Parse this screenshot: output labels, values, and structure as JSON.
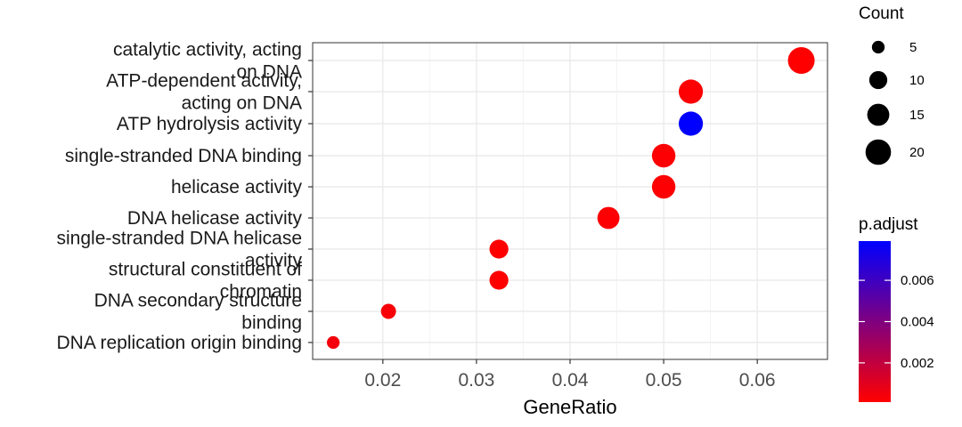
{
  "chart_data": {
    "type": "scatter",
    "title": "",
    "xlabel": "GeneRatio",
    "ylabel": "",
    "xlim": [
      0.0125,
      0.0675
    ],
    "x_ticks": [
      "0.02",
      "0.03",
      "0.04",
      "0.05",
      "0.06"
    ],
    "x_tick_values": [
      0.02,
      0.03,
      0.04,
      0.05,
      0.06
    ],
    "grid": true,
    "categories": [
      [
        "catalytic activity, acting",
        "on DNA"
      ],
      [
        "ATP-dependent activity,",
        "acting on DNA"
      ],
      [
        "ATP hydrolysis activity"
      ],
      [
        "single-stranded DNA binding"
      ],
      [
        "helicase activity"
      ],
      [
        "DNA helicase activity"
      ],
      [
        "single-stranded DNA helicase",
        "activity"
      ],
      [
        "structural constituent of",
        "chromatin"
      ],
      [
        "DNA secondary structure",
        "binding"
      ],
      [
        "DNA replication origin binding"
      ]
    ],
    "points": [
      {
        "x": 0.0647,
        "count": 22,
        "p_adjust": 0.0001
      },
      {
        "x": 0.0529,
        "count": 18,
        "p_adjust": 0.0002
      },
      {
        "x": 0.0529,
        "count": 18,
        "p_adjust": 0.0079
      },
      {
        "x": 0.05,
        "count": 17,
        "p_adjust": 0.0002
      },
      {
        "x": 0.05,
        "count": 17,
        "p_adjust": 0.0002
      },
      {
        "x": 0.0441,
        "count": 15,
        "p_adjust": 0.0002
      },
      {
        "x": 0.0324,
        "count": 11,
        "p_adjust": 0.0001
      },
      {
        "x": 0.0324,
        "count": 11,
        "p_adjust": 0.0001
      },
      {
        "x": 0.0206,
        "count": 7,
        "p_adjust": 0.0003
      },
      {
        "x": 0.0147,
        "count": 5,
        "p_adjust": 0.0004
      }
    ],
    "legend_count": {
      "title": "Count",
      "labels": [
        "5",
        "10",
        "15",
        "20"
      ],
      "values": [
        5,
        10,
        15,
        20
      ]
    },
    "legend_p_adjust": {
      "title": "p.adjust",
      "labels": [
        "0.006",
        "0.004",
        "0.002"
      ],
      "values": [
        0.006,
        0.004,
        0.002
      ],
      "range": [
        0.0001,
        0.0079
      ],
      "low_color": "#FF0000",
      "high_color": "#0000FF"
    },
    "legend_placement": "right"
  }
}
